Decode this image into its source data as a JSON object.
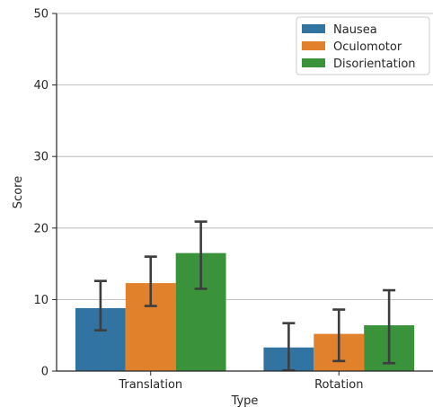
{
  "chart_data": {
    "type": "bar",
    "xlabel": "Type",
    "ylabel": "Score",
    "categories": [
      "Translation",
      "Rotation"
    ],
    "ylim": [
      0,
      50
    ],
    "yticks": [
      0,
      10,
      20,
      30,
      40,
      50
    ],
    "grid": "horizontal",
    "legend_position": "top-right",
    "series": [
      {
        "name": "Nausea",
        "color": "#3274a1",
        "values": [
          8.8,
          3.3
        ],
        "err_low": [
          5.7,
          0.1
        ],
        "err_high": [
          12.6,
          6.7
        ]
      },
      {
        "name": "Oculomotor",
        "color": "#e1812c",
        "values": [
          12.3,
          5.2
        ],
        "err_low": [
          9.1,
          1.4
        ],
        "err_high": [
          16.0,
          8.6
        ]
      },
      {
        "name": "Disorientation",
        "color": "#3a923a",
        "values": [
          16.5,
          6.4
        ],
        "err_low": [
          11.5,
          1.1
        ],
        "err_high": [
          20.9,
          11.3
        ]
      }
    ]
  }
}
